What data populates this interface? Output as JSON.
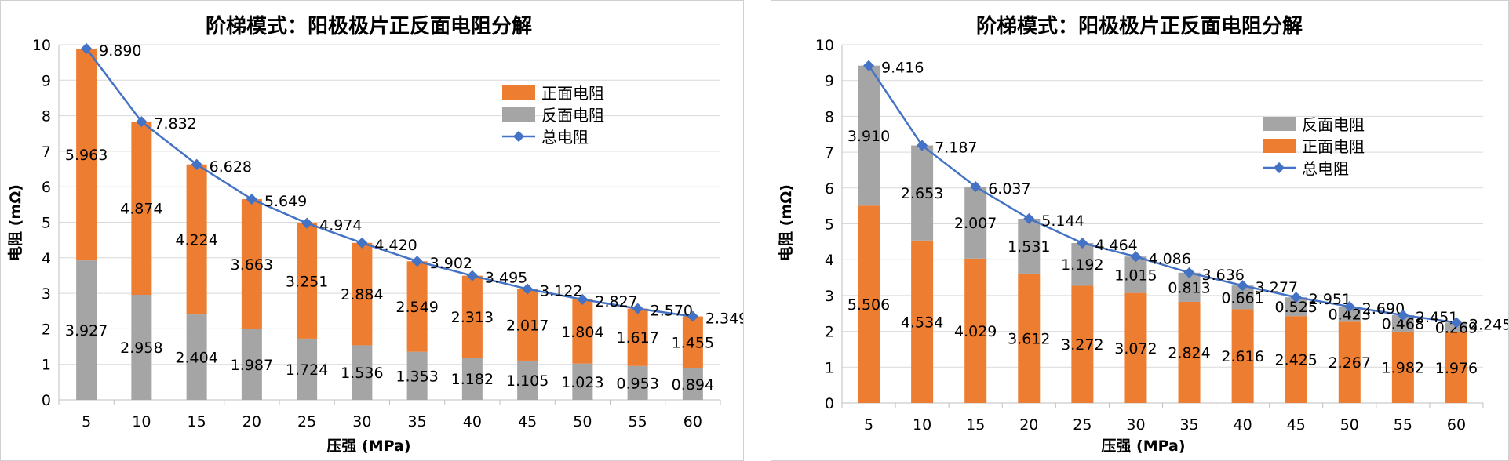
{
  "charts": [
    {
      "title": "阶梯模式：阳极极片正反面电阻分解",
      "xlabel": "压强 (MPa)",
      "ylabel": "电阻 (mΩ)"
    },
    {
      "title": "阶梯模式：阳极极片正反面电阻分解",
      "xlabel": "压强 (MPa)",
      "ylabel": "电阻 (mΩ)"
    }
  ],
  "chart_data": [
    {
      "type": "bar",
      "stacked": true,
      "title": "阶梯模式：阳极极片正反面电阻分解",
      "xlabel": "压强 (MPa)",
      "ylabel": "电阻 (mΩ)",
      "ylim": [
        0,
        10
      ],
      "yticks": [
        0,
        1,
        2,
        3,
        4,
        5,
        6,
        7,
        8,
        9,
        10
      ],
      "grid": true,
      "legend_position": "top-right",
      "categories": [
        "5",
        "10",
        "15",
        "20",
        "25",
        "30",
        "35",
        "40",
        "45",
        "50",
        "55",
        "60"
      ],
      "series": [
        {
          "name": "反面电阻",
          "kind": "bar",
          "color": "#a5a5a5",
          "values": [
            3.927,
            2.958,
            2.404,
            1.987,
            1.724,
            1.536,
            1.353,
            1.182,
            1.105,
            1.023,
            0.953,
            0.894
          ],
          "labels": [
            "3.927",
            "2.958",
            "2.404",
            "1.987",
            "1.724",
            "1.536",
            "1.353",
            "1.182",
            "1.105",
            "1.023",
            "0.953",
            "0.894"
          ]
        },
        {
          "name": "正面电阻",
          "kind": "bar",
          "color": "#ed7d31",
          "values": [
            5.963,
            4.874,
            4.224,
            3.663,
            3.251,
            2.884,
            2.549,
            2.313,
            2.017,
            1.804,
            1.617,
            1.455
          ],
          "labels": [
            "5.963",
            "4.874",
            "4.224",
            "3.663",
            "3.251",
            "2.884",
            "2.549",
            "2.313",
            "2.017",
            "1.804",
            "1.617",
            "1.455"
          ]
        },
        {
          "name": "总电阻",
          "kind": "line",
          "color": "#4472c4",
          "values": [
            9.89,
            7.832,
            6.628,
            5.649,
            4.974,
            4.42,
            3.902,
            3.495,
            3.122,
            2.827,
            2.57,
            2.349
          ],
          "labels": [
            "9.890",
            "7.832",
            "6.628",
            "5.649",
            "4.974",
            "4.420",
            "3.902",
            "3.495",
            "3.122",
            "2.827",
            "2.570",
            "2.349"
          ]
        }
      ],
      "legend": [
        "正面电阻",
        "反面电阻",
        "总电阻"
      ]
    },
    {
      "type": "bar",
      "stacked": true,
      "title": "阶梯模式：阳极极片正反面电阻分解",
      "xlabel": "压强 (MPa)",
      "ylabel": "电阻 (mΩ)",
      "ylim": [
        0,
        10
      ],
      "yticks": [
        0,
        1,
        2,
        3,
        4,
        5,
        6,
        7,
        8,
        9,
        10
      ],
      "grid": true,
      "legend_position": "top-right",
      "categories": [
        "5",
        "10",
        "15",
        "20",
        "25",
        "30",
        "35",
        "40",
        "45",
        "50",
        "55",
        "60"
      ],
      "series": [
        {
          "name": "正面电阻",
          "kind": "bar",
          "color": "#ed7d31",
          "values": [
            5.506,
            4.534,
            4.029,
            3.612,
            3.272,
            3.072,
            2.824,
            2.616,
            2.425,
            2.267,
            1.982,
            1.976
          ],
          "labels": [
            "5.506",
            "4.534",
            "4.029",
            "3.612",
            "3.272",
            "3.072",
            "2.824",
            "2.616",
            "2.425",
            "2.267",
            "1.982",
            "1.976"
          ]
        },
        {
          "name": "反面电阻",
          "kind": "bar",
          "color": "#a5a5a5",
          "values": [
            3.91,
            2.653,
            2.007,
            1.531,
            1.192,
            1.015,
            0.813,
            0.661,
            0.525,
            0.423,
            0.468,
            0.269
          ],
          "labels": [
            "3.910",
            "2.653",
            "2.007",
            "1.531",
            "1.192",
            "1.015",
            "0.813",
            "0.661",
            "0.525",
            "0.423",
            "0.468",
            "0.269"
          ]
        },
        {
          "name": "总电阻",
          "kind": "line",
          "color": "#4472c4",
          "values": [
            9.416,
            7.187,
            6.037,
            5.144,
            4.464,
            4.086,
            3.636,
            3.277,
            2.951,
            2.69,
            2.451,
            2.245
          ],
          "labels": [
            "9.416",
            "7.187",
            "6.037",
            "5.144",
            "4.464",
            "4.086",
            "3.636",
            "3.277",
            "2.951",
            "2.690",
            "2.451",
            "2.245"
          ]
        }
      ],
      "legend": [
        "反面电阻",
        "正面电阻",
        "总电阻"
      ]
    }
  ]
}
